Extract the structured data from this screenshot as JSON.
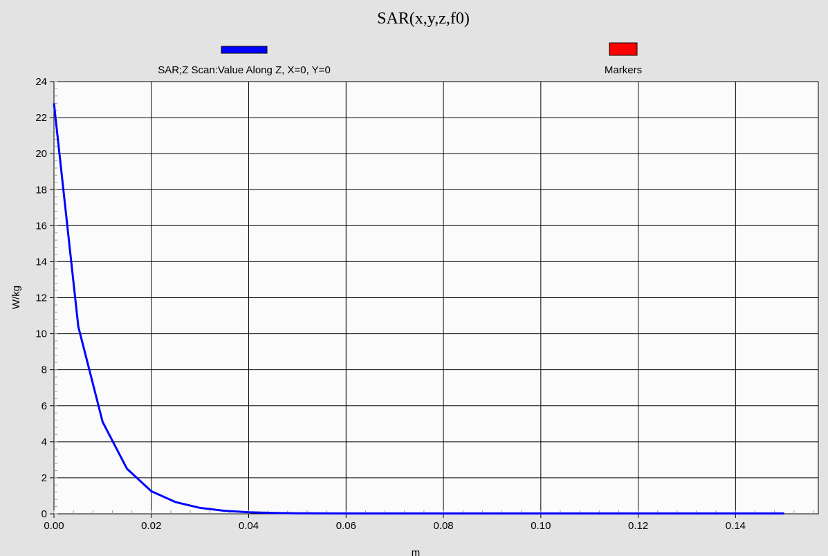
{
  "chart_data": {
    "type": "line",
    "title": "SAR(x,y,z,f0)",
    "xlabel": "m",
    "ylabel": "W/kg",
    "xlim": [
      0,
      0.157
    ],
    "ylim": [
      0,
      24
    ],
    "x_ticks": [
      "0.00",
      "0.02",
      "0.04",
      "0.06",
      "0.08",
      "0.10",
      "0.12",
      "0.14"
    ],
    "y_ticks": [
      "0",
      "2",
      "4",
      "6",
      "8",
      "10",
      "12",
      "14",
      "16",
      "18",
      "20",
      "22",
      "24"
    ],
    "grid": true,
    "legend_position": "top",
    "series": [
      {
        "name": "SAR;Z Scan:Value Along Z, X=0, Y=0",
        "color": "#0000ff",
        "x": [
          0.0,
          0.005,
          0.01,
          0.015,
          0.02,
          0.025,
          0.03,
          0.035,
          0.04,
          0.045,
          0.05,
          0.06,
          0.07,
          0.08,
          0.09,
          0.1,
          0.11,
          0.12,
          0.13,
          0.14,
          0.15
        ],
        "y": [
          22.8,
          10.4,
          5.1,
          2.5,
          1.25,
          0.65,
          0.33,
          0.17,
          0.09,
          0.05,
          0.03,
          0.02,
          0.02,
          0.02,
          0.02,
          0.02,
          0.02,
          0.02,
          0.02,
          0.02,
          0.02
        ]
      }
    ],
    "legend": [
      {
        "name": "SAR;Z Scan:Value Along Z, X=0, Y=0",
        "color": "#0000ff"
      },
      {
        "name": "Markers",
        "color": "#ff0000"
      }
    ]
  }
}
